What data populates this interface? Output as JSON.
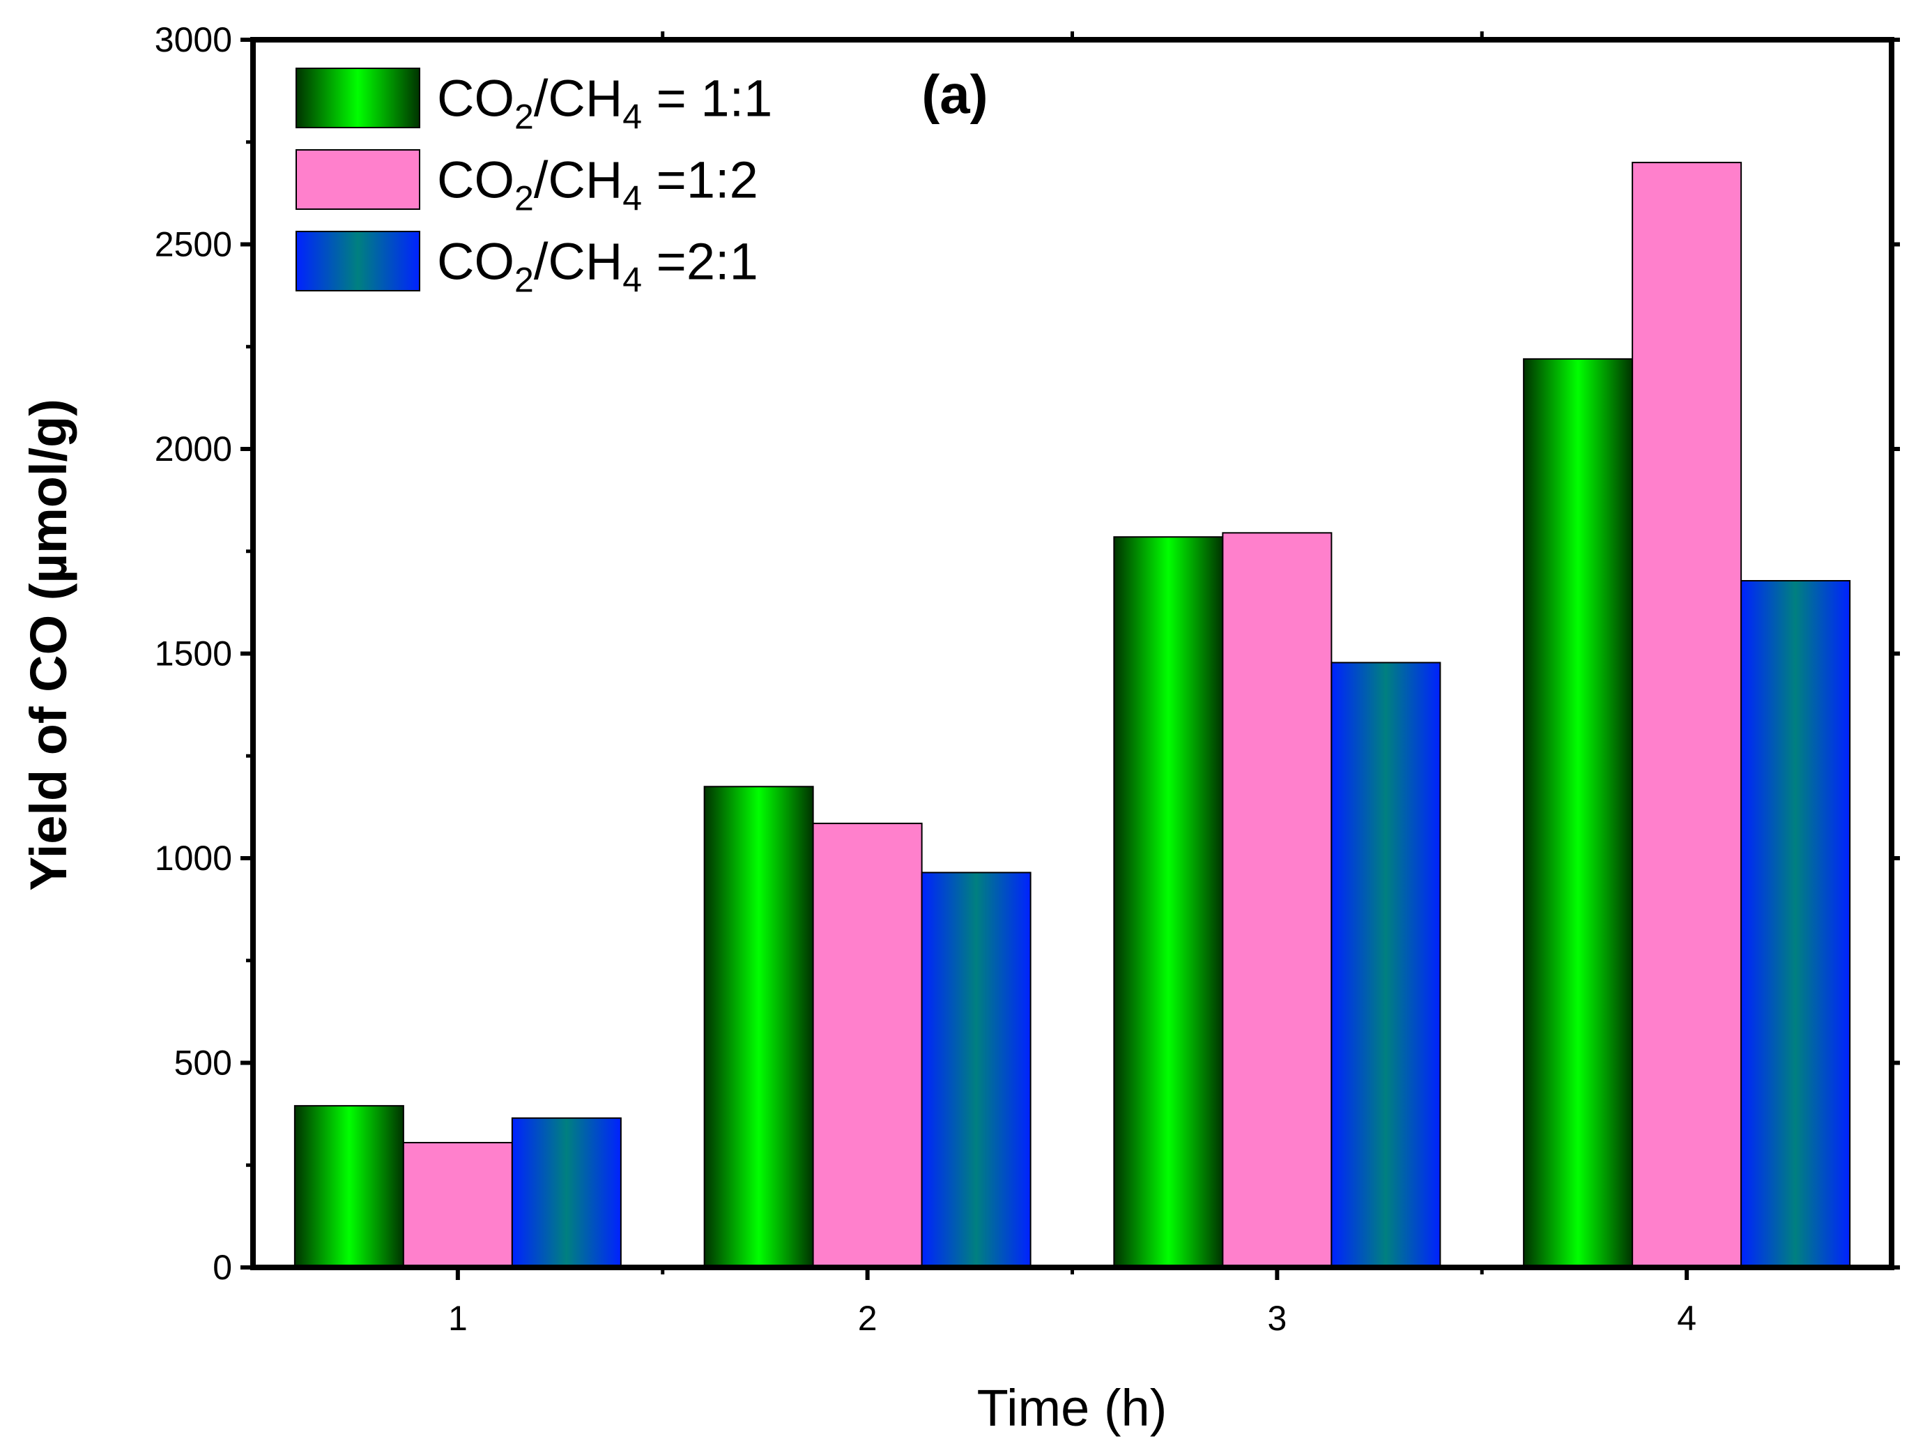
{
  "chart_data": {
    "type": "bar",
    "title": "",
    "panel_label": "(a)",
    "xlabel": "Time (h)",
    "ylabel": "Yield of CO (µmol/g)",
    "categories": [
      "1",
      "2",
      "3",
      "4"
    ],
    "ylim": [
      0,
      3000
    ],
    "yticks": [
      0,
      500,
      1000,
      1500,
      2000,
      2500,
      3000
    ],
    "legend_position": "top-left",
    "series": [
      {
        "name": "1:1",
        "legend": {
          "a": "CO",
          "a_sub": "2",
          "b": "/CH",
          "b_sub": "4",
          "c": " = 1:1"
        },
        "values": [
          395,
          1175,
          1785,
          2220
        ],
        "gradient": [
          "#00ff00",
          "#004d00"
        ]
      },
      {
        "name": "1:2",
        "legend": {
          "a": "CO",
          "a_sub": "2",
          "b": "/CH",
          "b_sub": "4",
          "c": " =1:2"
        },
        "values": [
          305,
          1085,
          1795,
          2700
        ],
        "gradient": [
          "#ff80cc",
          "#ff80cc"
        ]
      },
      {
        "name": "2:1",
        "legend": {
          "a": "CO",
          "a_sub": "2",
          "b": "/CH",
          "b_sub": "4",
          "c": " =2:1"
        },
        "values": [
          365,
          965,
          1478,
          1678
        ],
        "gradient": [
          "#0022ff",
          "#008080"
        ]
      }
    ]
  }
}
